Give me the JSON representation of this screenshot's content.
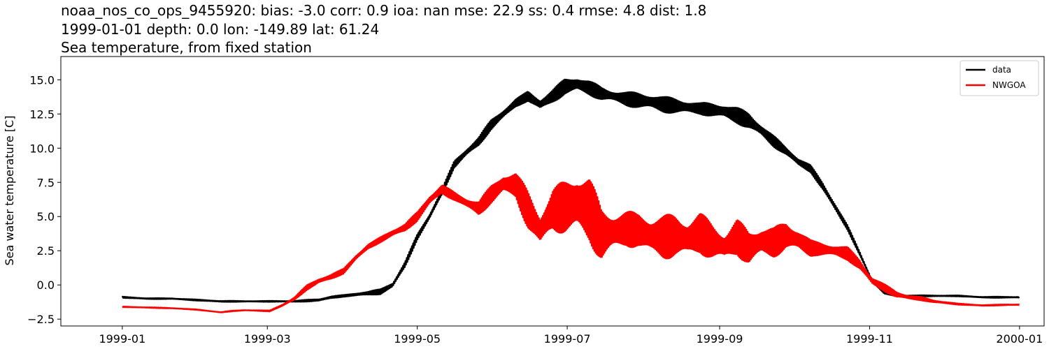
{
  "chart_data": {
    "type": "line",
    "title_lines": [
      "noaa_nos_co_ops_9455920: bias: -3.0  corr: 0.9  ioa: nan  mse: 22.9  ss: 0.4  rmse: 4.8  dist: 1.8",
      "1999-01-01 depth: 0.0 lon: -149.89 lat: 61.24",
      "Sea temperature, from fixed station"
    ],
    "xlabel": "",
    "ylabel": "Sea water temperature [C]",
    "x_range_days": [
      -25,
      375
    ],
    "ylim": [
      -3.0,
      16.7
    ],
    "x_ticks": [
      {
        "day": 0,
        "label": "1999-01"
      },
      {
        "day": 59,
        "label": "1999-03"
      },
      {
        "day": 120,
        "label": "1999-05"
      },
      {
        "day": 181,
        "label": "1999-07"
      },
      {
        "day": 243,
        "label": "1999-09"
      },
      {
        "day": 304,
        "label": "1999-11"
      },
      {
        "day": 365,
        "label": "2000-01"
      }
    ],
    "y_ticks": [
      {
        "value": -2.5,
        "label": "−2.5"
      },
      {
        "value": 0.0,
        "label": "0.0"
      },
      {
        "value": 2.5,
        "label": "2.5"
      },
      {
        "value": 5.0,
        "label": "5.0"
      },
      {
        "value": 7.5,
        "label": "7.5"
      },
      {
        "value": 10.0,
        "label": "10.0"
      },
      {
        "value": 12.5,
        "label": "12.5"
      },
      {
        "value": 15.0,
        "label": "15.0"
      }
    ],
    "legend_position": "top-right",
    "series": [
      {
        "name": "data",
        "color": "#000000",
        "x_days": [
          0,
          10,
          20,
          30,
          40,
          50,
          60,
          70,
          80,
          85,
          90,
          95,
          100,
          105,
          110,
          115,
          120,
          125,
          130,
          135,
          140,
          145,
          150,
          155,
          160,
          165,
          170,
          175,
          180,
          185,
          190,
          195,
          200,
          205,
          210,
          215,
          220,
          225,
          230,
          235,
          240,
          245,
          250,
          255,
          260,
          265,
          270,
          275,
          280,
          285,
          290,
          295,
          300,
          305,
          310,
          315,
          320,
          330,
          340,
          350,
          360,
          365
        ],
        "values": [
          -0.9,
          -1.0,
          -1.0,
          -1.1,
          -1.2,
          -1.2,
          -1.2,
          -1.2,
          -1.1,
          -0.9,
          -0.8,
          -0.7,
          -0.6,
          -0.5,
          0.0,
          1.5,
          3.5,
          5.0,
          6.8,
          8.8,
          9.7,
          10.5,
          11.7,
          12.5,
          13.3,
          13.8,
          13.2,
          13.8,
          14.5,
          14.7,
          14.4,
          14.0,
          13.8,
          13.6,
          13.5,
          13.4,
          13.2,
          13.1,
          13.0,
          12.9,
          12.8,
          12.7,
          12.4,
          12.0,
          11.3,
          10.5,
          9.8,
          9.0,
          8.5,
          7.2,
          5.7,
          4.2,
          2.3,
          0.3,
          -0.6,
          -0.8,
          -0.8,
          -0.8,
          -0.8,
          -0.9,
          -0.9,
          -0.9
        ],
        "amplitude": [
          0.05,
          0.05,
          0.05,
          0.05,
          0.05,
          0.05,
          0.05,
          0.05,
          0.1,
          0.1,
          0.1,
          0.15,
          0.15,
          0.2,
          0.2,
          0.25,
          0.25,
          0.3,
          0.3,
          0.3,
          0.3,
          0.35,
          0.4,
          0.4,
          0.4,
          0.5,
          0.5,
          0.5,
          0.6,
          0.6,
          0.6,
          0.6,
          0.6,
          0.6,
          0.6,
          0.6,
          0.6,
          0.6,
          0.6,
          0.6,
          0.6,
          0.6,
          0.6,
          0.6,
          0.5,
          0.5,
          0.4,
          0.4,
          0.3,
          0.3,
          0.3,
          0.2,
          0.2,
          0.1,
          0.05,
          0.05,
          0.05,
          0.05,
          0.05,
          0.05,
          0.05,
          0.05
        ]
      },
      {
        "name": "NWGOA",
        "color": "#ff0000",
        "x_days": [
          0,
          10,
          20,
          30,
          35,
          40,
          45,
          50,
          60,
          65,
          70,
          75,
          80,
          85,
          90,
          95,
          100,
          105,
          110,
          115,
          120,
          125,
          130,
          135,
          140,
          145,
          150,
          155,
          160,
          165,
          170,
          175,
          180,
          185,
          190,
          195,
          200,
          205,
          210,
          215,
          220,
          225,
          230,
          235,
          240,
          245,
          250,
          255,
          260,
          265,
          270,
          275,
          280,
          285,
          290,
          295,
          300,
          305,
          310,
          315,
          320,
          325,
          330,
          340,
          350,
          360,
          365
        ],
        "values": [
          -1.6,
          -1.65,
          -1.7,
          -1.8,
          -1.9,
          -2.0,
          -1.9,
          -1.85,
          -1.9,
          -1.5,
          -1.0,
          -0.2,
          0.3,
          0.6,
          1.0,
          2.0,
          2.8,
          3.3,
          3.8,
          4.2,
          5.0,
          6.2,
          7.0,
          6.5,
          6.0,
          5.6,
          6.6,
          7.4,
          7.3,
          5.5,
          4.0,
          5.5,
          5.7,
          6.0,
          5.5,
          3.7,
          3.9,
          4.1,
          4.0,
          3.6,
          3.5,
          3.6,
          3.4,
          3.8,
          3.2,
          2.8,
          3.5,
          2.7,
          3.2,
          3.1,
          3.6,
          3.3,
          2.7,
          2.6,
          2.5,
          2.3,
          1.5,
          0.3,
          -0.2,
          -0.7,
          -0.9,
          -1.0,
          -1.2,
          -1.4,
          -1.5,
          -1.45,
          -1.45
        ],
        "amplitude": [
          0.03,
          0.03,
          0.03,
          0.03,
          0.03,
          0.03,
          0.03,
          0.03,
          0.05,
          0.1,
          0.15,
          0.2,
          0.2,
          0.2,
          0.2,
          0.25,
          0.25,
          0.25,
          0.3,
          0.3,
          0.35,
          0.4,
          0.4,
          0.4,
          0.5,
          0.6,
          0.7,
          0.8,
          1.0,
          1.6,
          1.8,
          2.0,
          2.3,
          2.6,
          2.5,
          2.0,
          1.7,
          1.6,
          1.8,
          1.8,
          1.7,
          1.6,
          1.5,
          1.6,
          1.6,
          1.5,
          1.6,
          1.4,
          1.2,
          1.1,
          1.1,
          1.0,
          0.8,
          0.6,
          0.5,
          0.5,
          0.4,
          0.3,
          0.3,
          0.3,
          0.2,
          0.15,
          0.1,
          0.05,
          0.05,
          0.05,
          0.05
        ]
      }
    ]
  }
}
